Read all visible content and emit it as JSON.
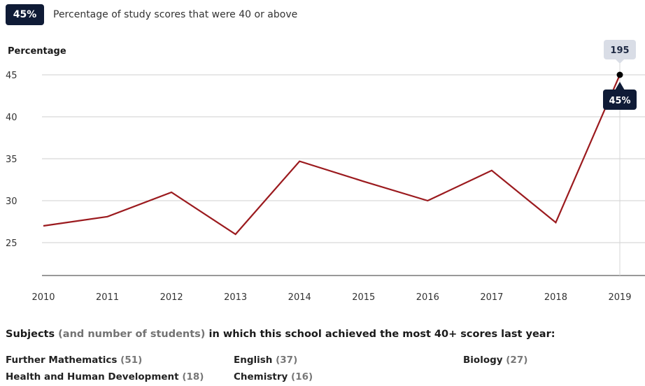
{
  "header": {
    "badge": "45%",
    "description": "Percentage of study scores that were 40 or above"
  },
  "chart_data": {
    "type": "line",
    "ylabel": "Percentage",
    "x": [
      2010,
      2011,
      2012,
      2013,
      2014,
      2015,
      2016,
      2017,
      2018,
      2019
    ],
    "series": [
      {
        "values": [
          27.0,
          28.1,
          31.0,
          26.0,
          34.7,
          32.3,
          30.0,
          33.6,
          27.4,
          45.0
        ]
      }
    ],
    "yticks": [
      25,
      30,
      35,
      40,
      45
    ],
    "ylim": [
      20.5,
      46.5
    ],
    "grid": true,
    "line_color": "#9b1a1e",
    "highlight": {
      "x": 2019,
      "count_label": "195",
      "value_label": "45%"
    }
  },
  "subjects": {
    "title_main_1": "Subjects",
    "title_muted": "(and number of students)",
    "title_main_2": "in which this school achieved the most 40+ scores last year:",
    "items": [
      {
        "name": "Further Mathematics",
        "count": "(51)"
      },
      {
        "name": "English",
        "count": "(37)"
      },
      {
        "name": "Biology",
        "count": "(27)"
      },
      {
        "name": "Health and Human Development",
        "count": "(18)"
      },
      {
        "name": "Chemistry",
        "count": "(16)"
      }
    ]
  }
}
